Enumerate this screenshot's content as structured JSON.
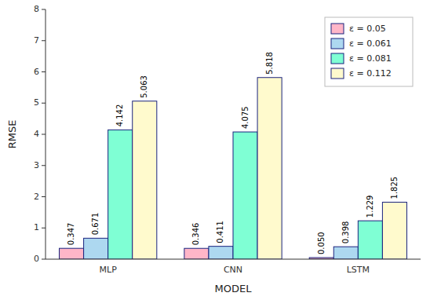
{
  "chart_data": {
    "type": "bar",
    "x_label": "MODEL",
    "y_label": "RMSE",
    "categories": [
      "MLP",
      "CNN",
      "LSTM"
    ],
    "series": [
      {
        "name": "ε = 0.05",
        "color": "#FFB6C8",
        "values": [
          0.347,
          0.346,
          0.05
        ],
        "value_labels": [
          "0.347",
          "0.346",
          "0.050"
        ]
      },
      {
        "name": "ε = 0.061",
        "color": "#ADD8F0",
        "values": [
          0.671,
          0.411,
          0.398
        ],
        "value_labels": [
          "0.671",
          "0.411",
          "0.398"
        ]
      },
      {
        "name": "ε = 0.081",
        "color": "#7FFFD4",
        "values": [
          4.142,
          4.075,
          1.229
        ],
        "value_labels": [
          "4.142",
          "4.075",
          "1.229"
        ]
      },
      {
        "name": "ε = 0.112",
        "color": "#FFFACD",
        "values": [
          5.063,
          5.818,
          1.825
        ],
        "value_labels": [
          "5.063",
          "5.818",
          "1.825"
        ]
      }
    ],
    "ylim": [
      0,
      8
    ],
    "yticks": [
      0,
      1,
      2,
      3,
      4,
      5,
      6,
      7,
      8
    ],
    "grid": false,
    "legend": "upper right",
    "data_labels": true
  }
}
